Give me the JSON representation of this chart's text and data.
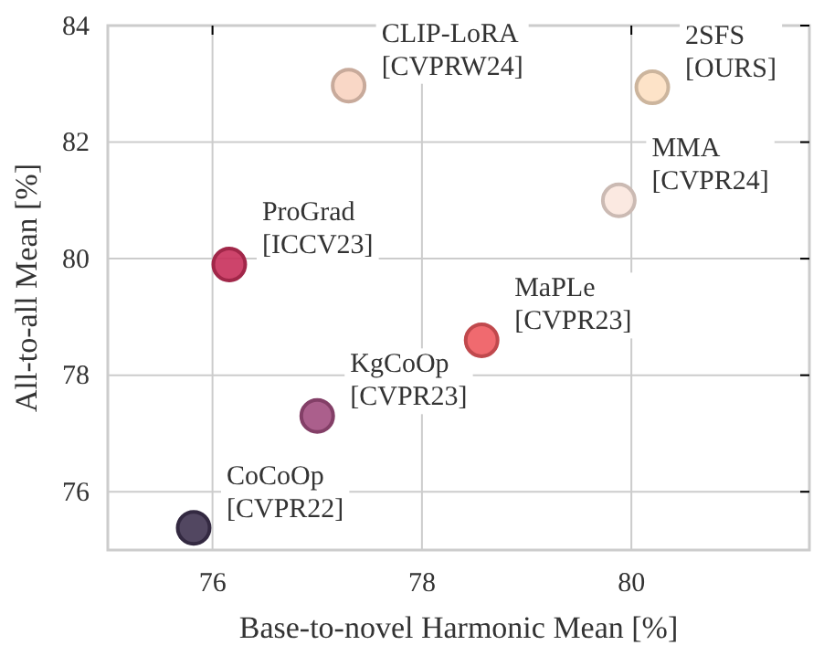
{
  "chart_data": {
    "type": "scatter",
    "xlabel": "Base-to-novel Harmonic Mean [%]",
    "ylabel": "All-to-all Mean [%]",
    "xlim": [
      75,
      81.7
    ],
    "xticks": [
      76,
      78,
      80
    ],
    "ylim": [
      75,
      84
    ],
    "yticks": [
      76,
      78,
      80,
      82,
      84
    ],
    "grid": true,
    "marker": "circle",
    "series": [
      {
        "x": [
          75.82,
          77.0,
          76.16,
          78.57,
          77.3,
          79.88,
          80.2
        ],
        "values": [
          75.38,
          77.3,
          79.9,
          78.6,
          82.97,
          81.0,
          82.94
        ],
        "colors": [
          "#3f3350",
          "#a24e7f",
          "#c8305b",
          "#ee5a5f",
          "#f8d3c0",
          "#fbe7de",
          "#fde0c2"
        ]
      }
    ],
    "annotations": [
      {
        "text": "CoCoOp\n[CVPR22]",
        "x": 75.82,
        "y": 75.38
      },
      {
        "text": "KgCoOp\n[CVPR23]",
        "x": 77.0,
        "y": 77.3
      },
      {
        "text": "ProGrad\n[ICCV23]",
        "x": 76.16,
        "y": 79.9
      },
      {
        "text": "MaPLe\n[CVPR23]",
        "x": 78.57,
        "y": 78.6
      },
      {
        "text": "CLIP-LoRA\n[CVPRW24]",
        "x": 77.3,
        "y": 82.97
      },
      {
        "text": "MMA\n[CVPR24]",
        "x": 79.88,
        "y": 81.0
      },
      {
        "text": "2SFS\n[OURS]",
        "x": 80.2,
        "y": 82.94
      }
    ]
  }
}
